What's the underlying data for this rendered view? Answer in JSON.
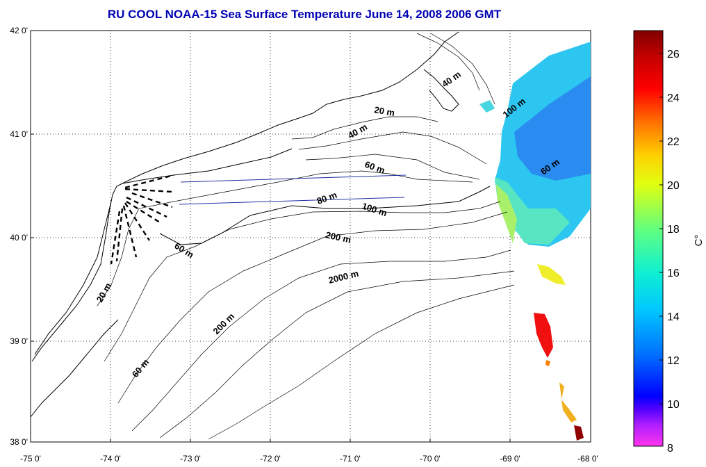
{
  "title": "RU COOL  NOAA-15 Sea Surface Temperature June 14, 2008 2006 GMT",
  "x_ticks": [
    "-75 0'",
    "-74 0'",
    "-73 0'",
    "-72 0'",
    "-71 0'",
    "-70 0'",
    "-69 0'",
    "-68 0'"
  ],
  "y_ticks": [
    "42 0'",
    "41 0'",
    "40 0'",
    "39 0'",
    "38 0'"
  ],
  "colorbar": {
    "ticks": [
      "26",
      "24",
      "22",
      "20",
      "18",
      "16",
      "14",
      "12",
      "10",
      "8"
    ],
    "unit": "C°",
    "range": [
      8,
      27
    ],
    "colormap_hex": [
      "#ff33ee",
      "#7700ff",
      "#0000ff",
      "#0088ff",
      "#00e0e0",
      "#30ff90",
      "#d0ff10",
      "#ffe000",
      "#ff7000",
      "#ff0000",
      "#b00000",
      "#800000"
    ]
  },
  "isobath_labels": [
    "40 m",
    "20 m",
    "40 m",
    "60 m",
    "100 m",
    "60 m",
    "80 m",
    "100 m",
    "200 m",
    "60 m",
    "2000 m",
    "20 m",
    "200 m",
    "60 m"
  ]
}
